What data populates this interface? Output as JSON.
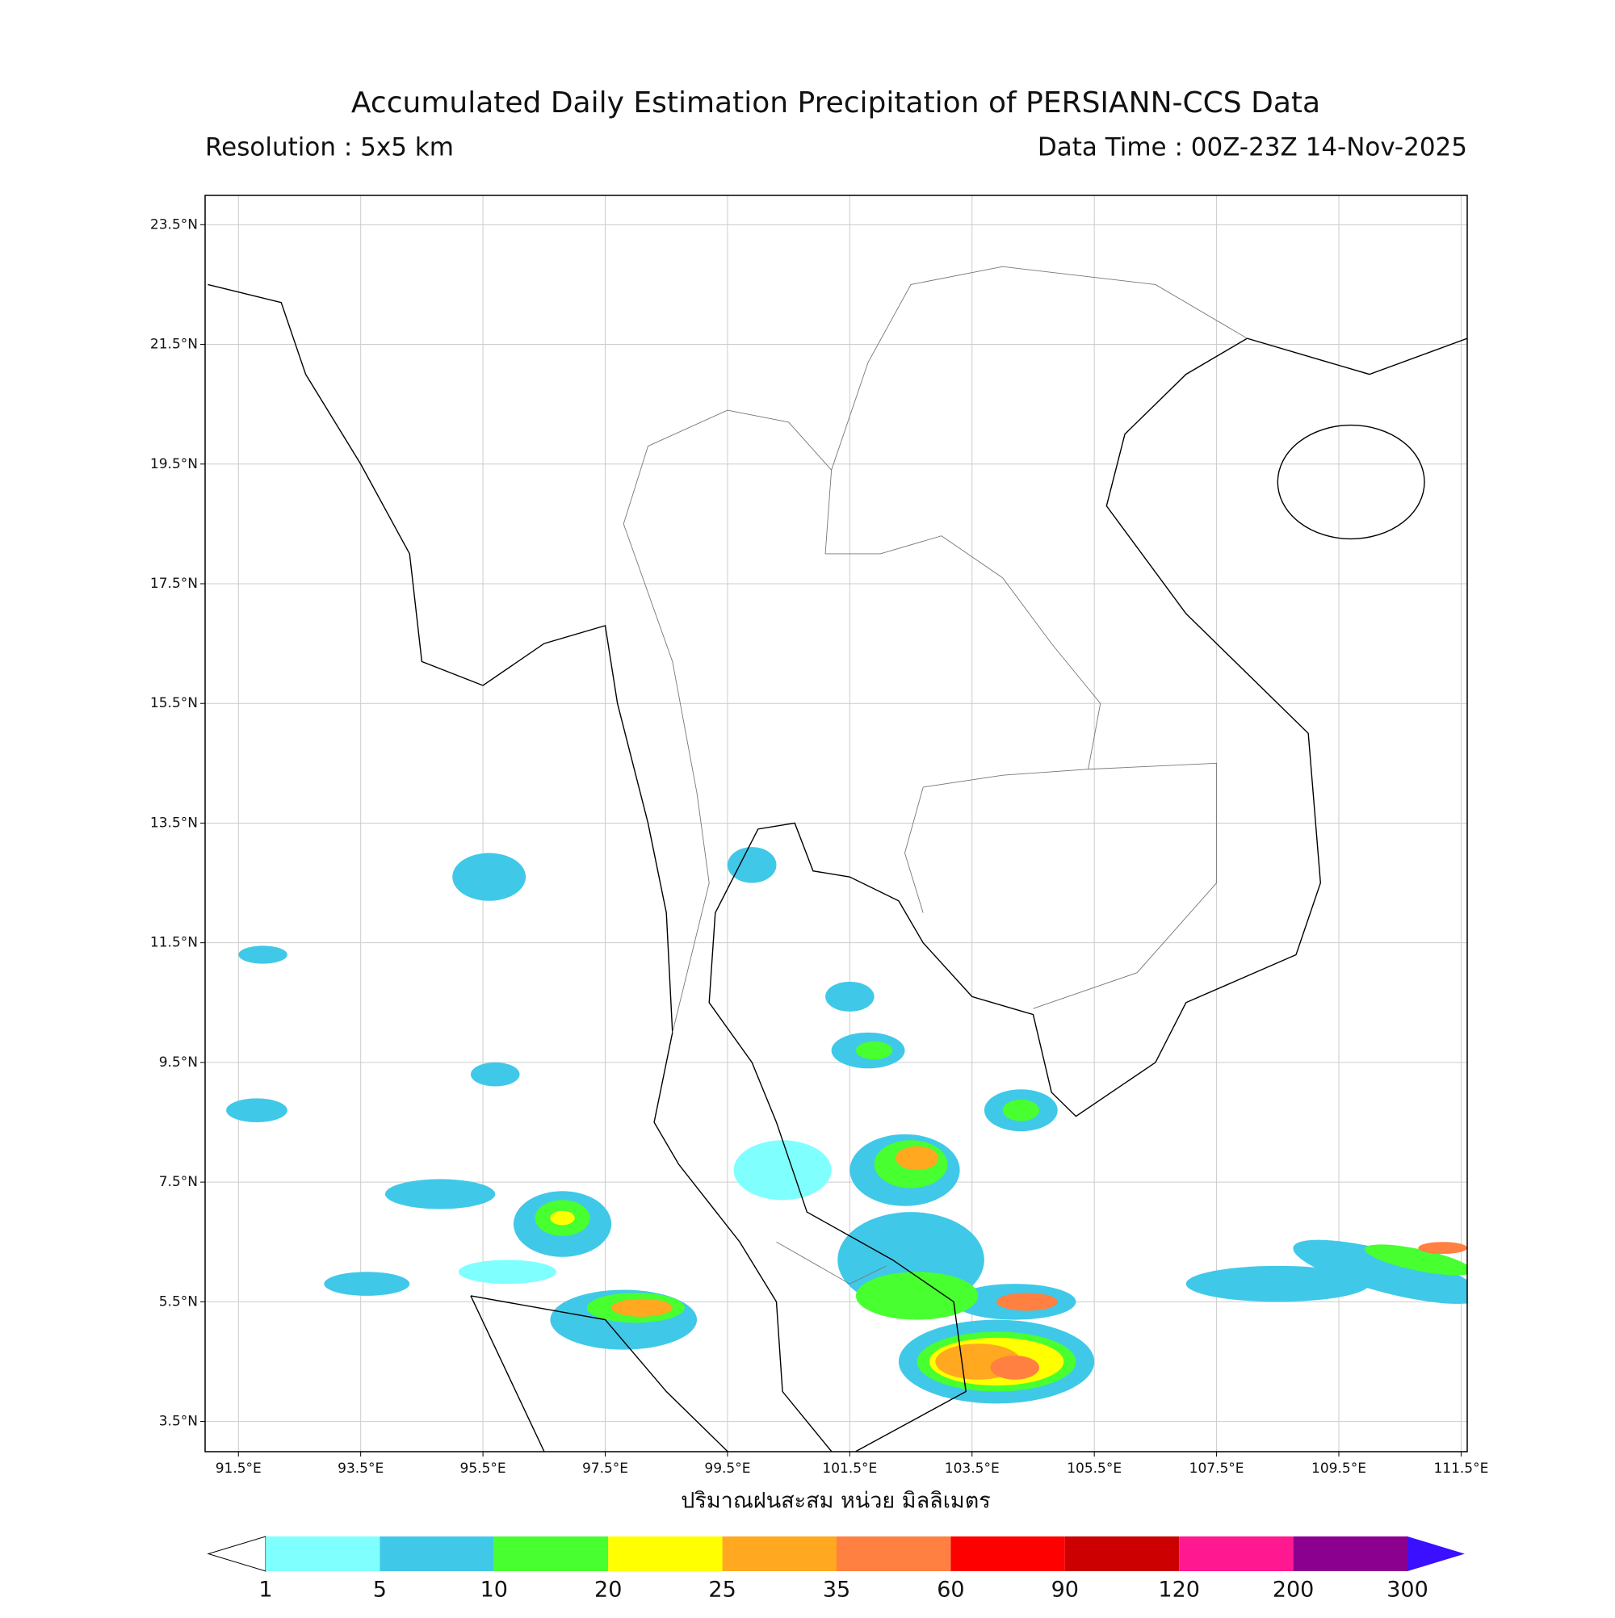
{
  "title": "Accumulated Daily Estimation Precipitation of PERSIANN-CCS Data",
  "resolution_label": "Resolution : 5x5 km",
  "data_time_label": "Data Time : 00Z-23Z 14-Nov-2025",
  "map": {
    "xlim": [
      90.955,
      111.6
    ],
    "ylim": [
      2.995,
      23.99
    ],
    "xticks": [
      {
        "value": 91.5,
        "label": "91.5°E"
      },
      {
        "value": 93.5,
        "label": "93.5°E"
      },
      {
        "value": 95.5,
        "label": "95.5°E"
      },
      {
        "value": 97.5,
        "label": "97.5°E"
      },
      {
        "value": 99.5,
        "label": "99.5°E"
      },
      {
        "value": 101.5,
        "label": "101.5°E"
      },
      {
        "value": 103.5,
        "label": "103.5°E"
      },
      {
        "value": 105.5,
        "label": "105.5°E"
      },
      {
        "value": 107.5,
        "label": "107.5°E"
      },
      {
        "value": 109.5,
        "label": "109.5°E"
      },
      {
        "value": 111.5,
        "label": "111.5°E"
      }
    ],
    "yticks": [
      {
        "value": 3.5,
        "label": "3.5°N"
      },
      {
        "value": 5.5,
        "label": "5.5°N"
      },
      {
        "value": 7.5,
        "label": "7.5°N"
      },
      {
        "value": 9.5,
        "label": "9.5°N"
      },
      {
        "value": 11.5,
        "label": "11.5°N"
      },
      {
        "value": 13.5,
        "label": "13.5°N"
      },
      {
        "value": 15.5,
        "label": "15.5°N"
      },
      {
        "value": 17.5,
        "label": "17.5°N"
      },
      {
        "value": 19.5,
        "label": "19.5°N"
      },
      {
        "value": 21.5,
        "label": "21.5°N"
      },
      {
        "value": 23.5,
        "label": "23.5°N"
      }
    ],
    "xlabel": "ปริมาณฝนสะสม หน่วย มิลลิเมตร",
    "grid": true
  },
  "colorbar": {
    "levels": [
      1,
      5,
      10,
      20,
      25,
      35,
      60,
      90,
      120,
      200,
      300
    ],
    "colors": [
      "#80ffff",
      "#40c8e8",
      "#48ff30",
      "#ffff00",
      "#ffa820",
      "#ff8040",
      "#ff0000",
      "#cc0000",
      "#ff1890",
      "#8c0090"
    ],
    "under_color": "#ffffff",
    "over_color": "#3b0fff"
  }
}
